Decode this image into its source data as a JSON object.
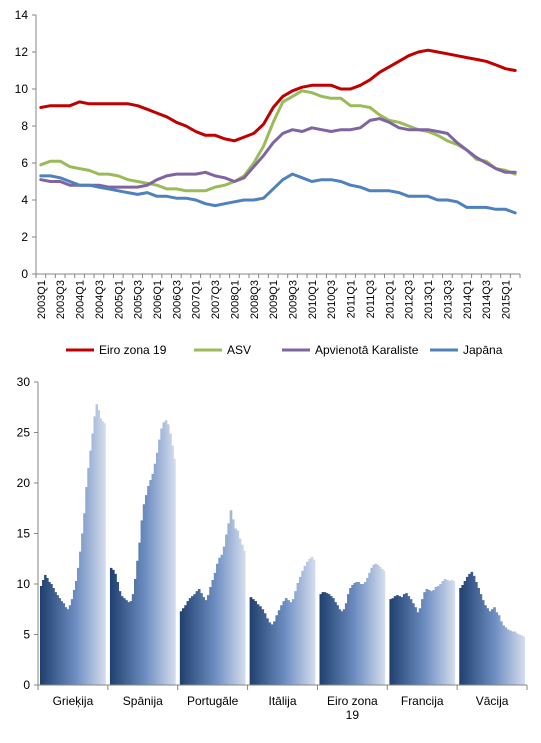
{
  "chart_data": [
    {
      "type": "line",
      "ylim": [
        0,
        14
      ],
      "yticks": [
        0,
        2,
        4,
        6,
        8,
        10,
        12,
        14
      ],
      "grid": false,
      "legend_position": "bottom",
      "x": [
        "2003Q1",
        "2003Q2",
        "2003Q3",
        "2003Q4",
        "2004Q1",
        "2004Q2",
        "2004Q3",
        "2004Q4",
        "2005Q1",
        "2005Q2",
        "2005Q3",
        "2005Q4",
        "2006Q1",
        "2006Q2",
        "2006Q3",
        "2006Q4",
        "2007Q1",
        "2007Q2",
        "2007Q3",
        "2007Q4",
        "2008Q1",
        "2008Q2",
        "2008Q3",
        "2008Q4",
        "2009Q1",
        "2009Q2",
        "2009Q3",
        "2009Q4",
        "2010Q1",
        "2010Q2",
        "2010Q3",
        "2010Q4",
        "2011Q1",
        "2011Q2",
        "2011Q3",
        "2011Q4",
        "2012Q1",
        "2012Q2",
        "2012Q3",
        "2012Q4",
        "2013Q1",
        "2013Q2",
        "2013Q3",
        "2013Q4",
        "2014Q1",
        "2014Q2",
        "2014Q3",
        "2014Q4",
        "2015Q1",
        "2015Q2"
      ],
      "x_tick_labels": [
        "2003Q1",
        "2003Q3",
        "2004Q1",
        "2004Q3",
        "2005Q1",
        "2005Q3",
        "2006Q1",
        "2006Q3",
        "2007Q1",
        "2007Q3",
        "2008Q1",
        "2008Q3",
        "2009Q1",
        "2009Q3",
        "2010Q1",
        "2010Q3",
        "2011Q1",
        "2011Q3",
        "2012Q1",
        "2012Q3",
        "2013Q1",
        "2013Q3",
        "2014Q1",
        "2014Q3",
        "2015Q1"
      ],
      "series": [
        {
          "name": "Eiro zona 19",
          "color": "#c00000",
          "values": [
            9.0,
            9.1,
            9.1,
            9.1,
            9.3,
            9.2,
            9.2,
            9.2,
            9.2,
            9.2,
            9.1,
            8.9,
            8.7,
            8.5,
            8.2,
            8.0,
            7.7,
            7.5,
            7.5,
            7.3,
            7.2,
            7.4,
            7.6,
            8.1,
            9.0,
            9.6,
            9.9,
            10.1,
            10.2,
            10.2,
            10.2,
            10.0,
            10.0,
            10.2,
            10.5,
            10.9,
            11.2,
            11.5,
            11.8,
            12.0,
            12.1,
            12.0,
            11.9,
            11.8,
            11.7,
            11.6,
            11.5,
            11.3,
            11.1,
            11.0
          ]
        },
        {
          "name": "ASV",
          "color": "#9bbb59",
          "values": [
            5.9,
            6.1,
            6.1,
            5.8,
            5.7,
            5.6,
            5.4,
            5.4,
            5.3,
            5.1,
            5.0,
            4.9,
            4.8,
            4.6,
            4.6,
            4.5,
            4.5,
            4.5,
            4.7,
            4.8,
            5.0,
            5.3,
            6.0,
            6.9,
            8.2,
            9.3,
            9.6,
            9.9,
            9.8,
            9.6,
            9.5,
            9.5,
            9.1,
            9.1,
            9.0,
            8.6,
            8.3,
            8.2,
            8.0,
            7.8,
            7.7,
            7.5,
            7.2,
            7.0,
            6.7,
            6.2,
            6.1,
            5.7,
            5.6,
            5.4
          ]
        },
        {
          "name": "Apvienotā Karaliste",
          "color": "#8064a2",
          "values": [
            5.1,
            5.0,
            5.0,
            4.8,
            4.8,
            4.8,
            4.8,
            4.7,
            4.7,
            4.7,
            4.7,
            4.8,
            5.1,
            5.3,
            5.4,
            5.4,
            5.4,
            5.5,
            5.3,
            5.2,
            5.0,
            5.2,
            5.8,
            6.4,
            7.1,
            7.6,
            7.8,
            7.7,
            7.9,
            7.8,
            7.7,
            7.8,
            7.8,
            7.9,
            8.3,
            8.4,
            8.2,
            7.9,
            7.8,
            7.8,
            7.8,
            7.7,
            7.6,
            7.1,
            6.7,
            6.3,
            6.0,
            5.7,
            5.5,
            5.5
          ]
        },
        {
          "name": "Japāna",
          "color": "#4f81bd",
          "values": [
            5.3,
            5.3,
            5.2,
            5.0,
            4.8,
            4.8,
            4.7,
            4.6,
            4.5,
            4.4,
            4.3,
            4.4,
            4.2,
            4.2,
            4.1,
            4.1,
            4.0,
            3.8,
            3.7,
            3.8,
            3.9,
            4.0,
            4.0,
            4.1,
            4.6,
            5.1,
            5.4,
            5.2,
            5.0,
            5.1,
            5.1,
            5.0,
            4.8,
            4.7,
            4.5,
            4.5,
            4.5,
            4.4,
            4.2,
            4.2,
            4.2,
            4.0,
            4.0,
            3.9,
            3.6,
            3.6,
            3.6,
            3.5,
            3.5,
            3.3
          ]
        }
      ]
    },
    {
      "type": "bar",
      "ylim": [
        0,
        30
      ],
      "yticks": [
        0,
        5,
        10,
        15,
        20,
        25,
        30
      ],
      "grid": false,
      "gradient": {
        "start": "#1f3f6e",
        "end": "#d6deee"
      },
      "categories": [
        {
          "name": "Grieķija",
          "values": [
            9.8,
            10.4,
            10.9,
            10.6,
            10.2,
            10.0,
            9.6,
            9.2,
            8.9,
            8.6,
            8.3,
            8.1,
            7.7,
            7.5,
            7.9,
            8.5,
            9.4,
            10.3,
            11.6,
            13.2,
            15.0,
            17.0,
            19.6,
            21.5,
            23.2,
            24.9,
            26.6,
            27.8,
            27.2,
            26.4,
            26.1,
            25.9
          ]
        },
        {
          "name": "Spānija",
          "values": [
            11.6,
            11.4,
            11.0,
            10.2,
            9.3,
            8.8,
            8.6,
            8.4,
            8.2,
            8.3,
            9.0,
            10.5,
            12.3,
            14.1,
            16.3,
            17.9,
            18.8,
            19.7,
            20.3,
            20.9,
            21.9,
            23.0,
            24.3,
            25.4,
            26.0,
            26.2,
            25.8,
            24.9,
            23.7,
            22.4
          ]
        },
        {
          "name": "Portugāle",
          "values": [
            7.3,
            7.6,
            7.9,
            8.3,
            8.6,
            8.8,
            9.0,
            9.3,
            9.5,
            9.1,
            8.7,
            8.4,
            8.9,
            9.7,
            10.4,
            11.1,
            12.0,
            12.6,
            12.9,
            13.7,
            14.9,
            16.0,
            17.3,
            16.4,
            15.5,
            15.3,
            14.5,
            13.9,
            13.3
          ]
        },
        {
          "name": "Itālija",
          "values": [
            8.7,
            8.5,
            8.3,
            8.0,
            7.8,
            7.5,
            7.1,
            6.6,
            6.2,
            6.0,
            6.3,
            6.9,
            7.4,
            7.9,
            8.3,
            8.6,
            8.4,
            8.2,
            8.5,
            9.3,
            10.1,
            10.7,
            11.3,
            11.8,
            12.2,
            12.5,
            12.7,
            12.4
          ]
        },
        {
          "name": "Eiro zona 19",
          "values": [
            9.0,
            9.2,
            9.2,
            9.1,
            9.0,
            8.8,
            8.6,
            8.2,
            7.9,
            7.5,
            7.3,
            7.5,
            8.1,
            9.0,
            9.6,
            9.9,
            10.1,
            10.2,
            10.2,
            10.0,
            10.0,
            10.2,
            10.6,
            11.1,
            11.6,
            11.9,
            12.0,
            11.9,
            11.7,
            11.5,
            11.3
          ]
        },
        {
          "name": "Francija",
          "values": [
            8.5,
            8.6,
            8.8,
            8.9,
            8.8,
            8.7,
            9.0,
            9.1,
            8.8,
            8.5,
            8.1,
            7.7,
            7.2,
            7.6,
            8.5,
            9.2,
            9.5,
            9.4,
            9.3,
            9.4,
            9.7,
            9.8,
            10.0,
            10.3,
            10.5,
            10.4,
            10.3,
            10.4,
            10.3
          ]
        },
        {
          "name": "Vācija",
          "values": [
            9.6,
            9.9,
            10.3,
            10.7,
            11.0,
            11.2,
            10.8,
            10.2,
            9.6,
            9.0,
            8.4,
            7.9,
            7.6,
            7.3,
            7.5,
            7.7,
            7.2,
            6.9,
            6.3,
            5.9,
            5.7,
            5.5,
            5.4,
            5.3,
            5.3,
            5.1,
            5.0,
            4.9,
            4.8
          ]
        }
      ]
    }
  ]
}
